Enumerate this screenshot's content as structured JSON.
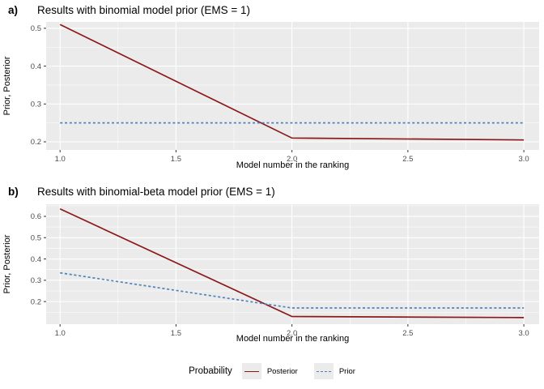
{
  "figure": {
    "legend": {
      "title": "Probability",
      "entries": [
        {
          "label": "Posterior",
          "style": "solid",
          "color": "#8B1A1A"
        },
        {
          "label": "Prior",
          "style": "dashed",
          "color": "#4F83BE"
        }
      ]
    },
    "colors": {
      "panel_background": "#EBEBEB",
      "gridline": "#FFFFFF",
      "tick_label": "#4D4D4D",
      "tick_mark": "#333333",
      "posterior": "#8B1A1A",
      "prior": "#4F83BE"
    }
  },
  "chart_data": [
    {
      "type": "line",
      "tag": "a)",
      "title": "Results with binomial model prior (EMS = 1)",
      "xlabel": "Model number in the ranking",
      "ylabel": "Prior, Posterior",
      "x": [
        1,
        2,
        3
      ],
      "series": [
        {
          "name": "Posterior",
          "values": [
            0.51,
            0.21,
            0.205
          ],
          "color": "#8B1A1A",
          "dash": "solid"
        },
        {
          "name": "Prior",
          "values": [
            0.25,
            0.25,
            0.25
          ],
          "color": "#4F83BE",
          "dash": "dashed"
        }
      ],
      "x_ticks": [
        1.0,
        1.5,
        2.0,
        2.5,
        3.0
      ],
      "x_tick_labels": [
        "1.0",
        "1.5",
        "2.0",
        "2.5",
        "3.0"
      ],
      "y_ticks": [
        0.2,
        0.3,
        0.4,
        0.5
      ],
      "y_tick_labels": [
        "0.2",
        "0.3",
        "0.4",
        "0.5"
      ],
      "x_domain": [
        0.94,
        3.066
      ],
      "y_domain": [
        0.1786,
        0.5169
      ],
      "grid": true,
      "legend_position": "bottom"
    },
    {
      "type": "line",
      "tag": "b)",
      "title": "Results with binomial-beta model prior (EMS = 1)",
      "xlabel": "Model number in the ranking",
      "ylabel": "Prior, Posterior",
      "x": [
        1,
        2,
        3
      ],
      "series": [
        {
          "name": "Posterior",
          "values": [
            0.635,
            0.13,
            0.125
          ],
          "color": "#8B1A1A",
          "dash": "solid"
        },
        {
          "name": "Prior",
          "values": [
            0.335,
            0.17,
            0.17
          ],
          "color": "#4F83BE",
          "dash": "dashed"
        }
      ],
      "x_ticks": [
        1.0,
        1.5,
        2.0,
        2.5,
        3.0
      ],
      "x_tick_labels": [
        "1.0",
        "1.5",
        "2.0",
        "2.5",
        "3.0"
      ],
      "y_ticks": [
        0.2,
        0.3,
        0.4,
        0.5,
        0.6
      ],
      "y_tick_labels": [
        "0.2",
        "0.3",
        "0.4",
        "0.5",
        "0.6"
      ],
      "x_domain": [
        0.94,
        3.066
      ],
      "y_domain": [
        0.094,
        0.657
      ],
      "grid": true,
      "legend_position": "bottom"
    }
  ]
}
